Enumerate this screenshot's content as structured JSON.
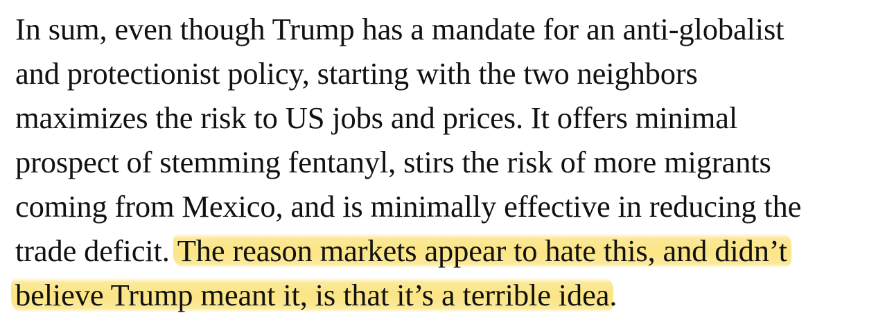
{
  "highlight_color": "#f9dc6a",
  "text_color": "#111111",
  "paragraph": {
    "line1": "In sum, even though Trump has a mandate for an anti-globalist",
    "line2": "and protectionist policy, starting with the two neighbors",
    "line3": "maximizes the risk to US jobs and prices. It offers minimal",
    "line4": "prospect of stemming fentanyl, stirs the risk of more migrants",
    "line5": "coming from Mexico, and is minimally effective in reducing the",
    "line6_plain": "trade deficit. ",
    "line6_highlight": "The reason markets appear to hate this, and didn’t",
    "line7_highlight": "believe Trump meant it, is that it’s a terrible idea",
    "line7_end": "."
  }
}
